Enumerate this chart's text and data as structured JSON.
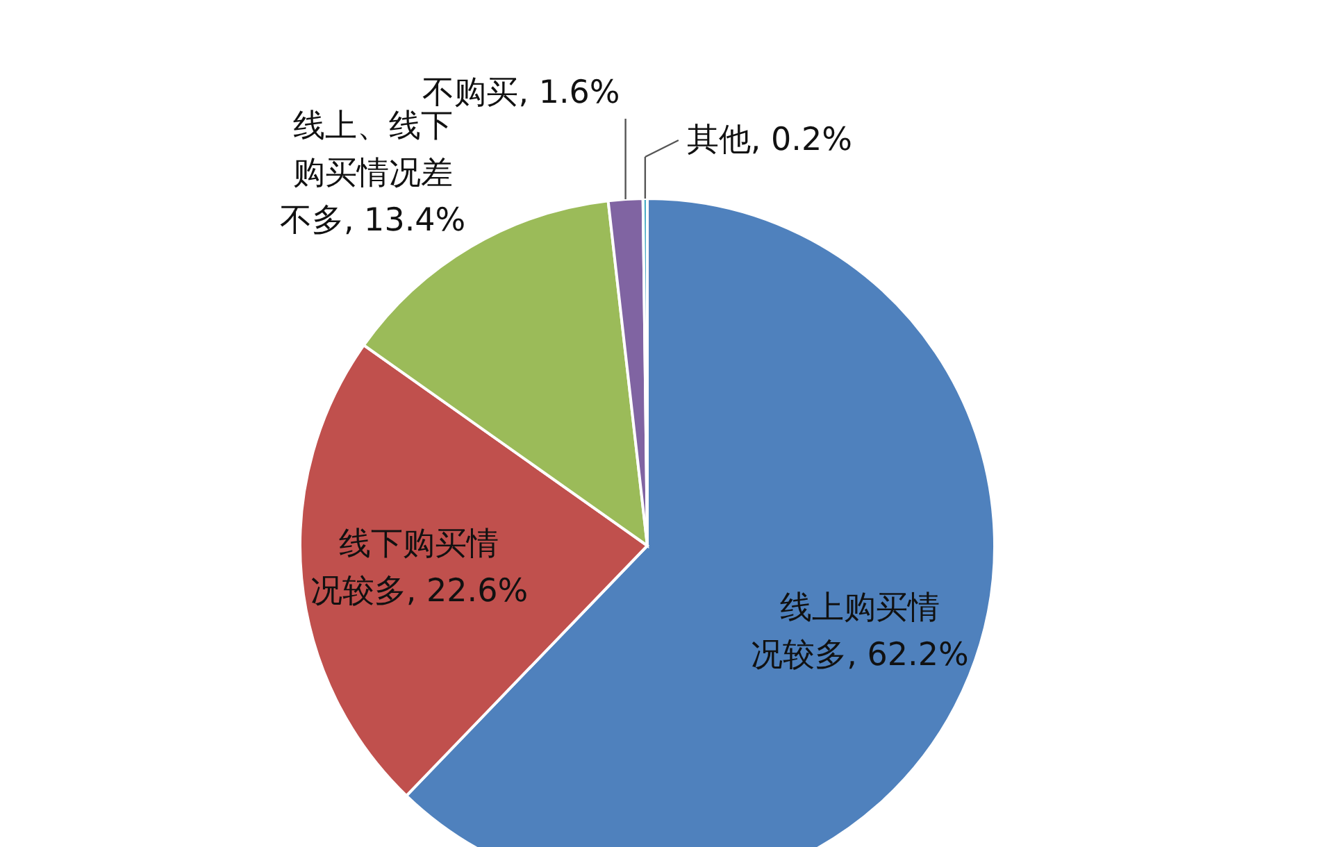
{
  "chart_data": {
    "type": "pie",
    "categories": [
      "线上购买情况较多",
      "线下购买情况较多",
      "线上、线下购买情况差不多",
      "不购买",
      "其他"
    ],
    "values": [
      62.2,
      22.6,
      13.4,
      1.6,
      0.2
    ],
    "value_labels": [
      "62.2%",
      "22.6%",
      "13.4%",
      "1.6%",
      "0.2%"
    ],
    "colors": [
      "#4f81bd",
      "#c0504d",
      "#9bbb59",
      "#8064a2",
      "#4bacc6"
    ]
  }
}
